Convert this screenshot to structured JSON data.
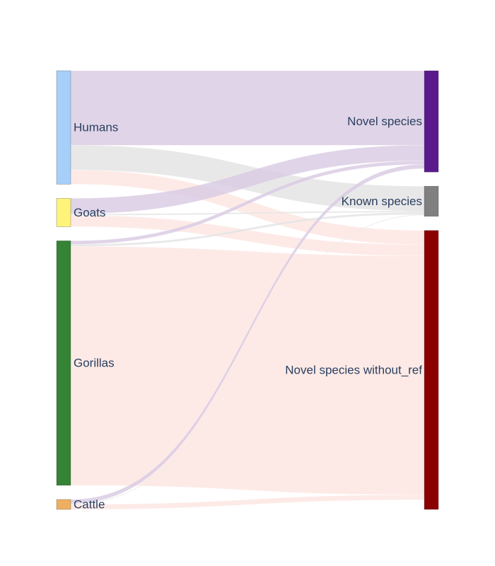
{
  "chart_data": {
    "type": "sankey",
    "title": "",
    "sources": [
      {
        "name": "Humans",
        "color": "#a6cffa"
      },
      {
        "name": "Goats",
        "color": "#fff37a"
      },
      {
        "name": "Gorillas",
        "color": "#358334"
      },
      {
        "name": "Cattle",
        "color": "#eeb060"
      }
    ],
    "targets": [
      {
        "name": "Novel species",
        "color": "#5a1a8c"
      },
      {
        "name": "Known species",
        "color": "#808080"
      },
      {
        "name": "Novel species without_ref",
        "color": "#8b0000"
      }
    ],
    "link_colors": {
      "Novel species": "#d9cbe3",
      "Known species": "#e3e3e3",
      "Novel species without_ref": "#fde5e1"
    },
    "links": [
      {
        "source": "Humans",
        "target": "Novel species",
        "value": 105
      },
      {
        "source": "Humans",
        "target": "Known species",
        "value": 35
      },
      {
        "source": "Humans",
        "target": "Novel species without_ref",
        "value": 20
      },
      {
        "source": "Goats",
        "target": "Novel species",
        "value": 22
      },
      {
        "source": "Goats",
        "target": "Known species",
        "value": 2
      },
      {
        "source": "Goats",
        "target": "Novel species without_ref",
        "value": 16
      },
      {
        "source": "Gorillas",
        "target": "Novel species",
        "value": 5
      },
      {
        "source": "Gorillas",
        "target": "Known species",
        "value": 3
      },
      {
        "source": "Gorillas",
        "target": "Novel species without_ref",
        "value": 337
      },
      {
        "source": "Cattle",
        "target": "Novel species",
        "value": 6
      },
      {
        "source": "Cattle",
        "target": "Known species",
        "value": 1
      },
      {
        "source": "Cattle",
        "target": "Novel species without_ref",
        "value": 7
      }
    ]
  }
}
